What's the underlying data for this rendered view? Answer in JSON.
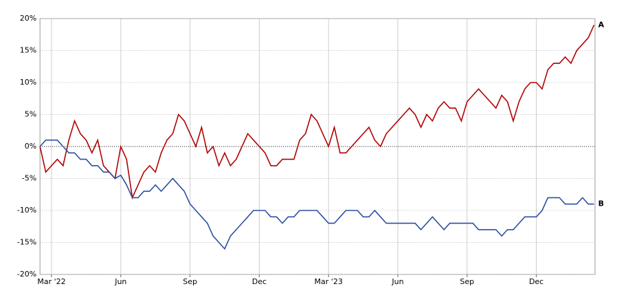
{
  "chart_data": {
    "type": "line",
    "categories": [
      null,
      null,
      "Mar '22",
      null,
      null,
      null,
      null,
      null,
      null,
      null,
      null,
      null,
      null,
      null,
      "Jun",
      null,
      null,
      null,
      null,
      null,
      null,
      null,
      null,
      null,
      null,
      null,
      "Sep",
      null,
      null,
      null,
      null,
      null,
      null,
      null,
      null,
      null,
      null,
      null,
      "Dec",
      null,
      null,
      null,
      null,
      null,
      null,
      null,
      null,
      null,
      null,
      null,
      "Mar '23",
      null,
      null,
      null,
      null,
      null,
      null,
      null,
      null,
      null,
      null,
      null,
      "Jun",
      null,
      null,
      null,
      null,
      null,
      null,
      null,
      null,
      null,
      null,
      null,
      "Sep",
      null,
      null,
      null,
      null,
      null,
      null,
      null,
      null,
      null,
      null,
      null,
      "Dec",
      null,
      null,
      null,
      null,
      null,
      null,
      null,
      null,
      null,
      null
    ],
    "series": [
      {
        "name": "A",
        "color": "#b00000",
        "values": [
          0,
          -4,
          -3,
          -2,
          -3,
          1,
          4,
          2,
          1,
          -1,
          1,
          -3,
          -4,
          -5,
          0,
          -2,
          -8,
          -6,
          -4,
          -3,
          -4,
          -1,
          1,
          2,
          5,
          4,
          2,
          0,
          3,
          -1,
          0,
          -3,
          -1,
          -3,
          -2,
          0,
          2,
          1,
          0,
          -1,
          -3,
          -3,
          -2,
          -2,
          -2,
          1,
          2,
          5,
          4,
          2,
          0,
          3,
          -1,
          -1,
          0,
          1,
          2,
          3,
          1,
          0,
          2,
          3,
          4,
          5,
          6,
          5,
          3,
          5,
          4,
          6,
          7,
          6,
          6,
          4,
          7,
          8,
          9,
          8,
          7,
          6,
          8,
          7,
          4,
          7,
          9,
          10,
          10,
          9,
          12,
          13,
          13,
          14,
          13,
          15,
          16,
          17,
          19
        ]
      },
      {
        "name": "B",
        "color": "#2a4fa0",
        "values": [
          0,
          1,
          1,
          1,
          0,
          -1,
          -1,
          -2,
          -2,
          -3,
          -3,
          -4,
          -4,
          -5,
          -4.5,
          -6,
          -8,
          -8,
          -7,
          -7,
          -6,
          -7,
          -6,
          -5,
          -6,
          -7,
          -9,
          -10,
          -11,
          -12,
          -14,
          -15,
          -16,
          -14,
          -13,
          -12,
          -11,
          -10,
          -10,
          -10,
          -11,
          -11,
          -12,
          -11,
          -11,
          -10,
          -10,
          -10,
          -10,
          -11,
          -12,
          -12,
          -11,
          -10,
          -10,
          -10,
          -11,
          -11,
          -10,
          -11,
          -12,
          -12,
          -12,
          -12,
          -12,
          -12,
          -13,
          -12,
          -11,
          -12,
          -13,
          -12,
          -12,
          -12,
          -12,
          -12,
          -13,
          -13,
          -13,
          -13,
          -14,
          -13,
          -13,
          -12,
          -11,
          -11,
          -11,
          -10,
          -8,
          -8,
          -8,
          -9,
          -9,
          -9,
          -8,
          -9,
          -9
        ]
      }
    ],
    "ylim": [
      -20,
      20
    ],
    "yticks": [
      {
        "value": -20,
        "label": "-20%"
      },
      {
        "value": -15,
        "label": "-15%"
      },
      {
        "value": -10,
        "label": "-10%"
      },
      {
        "value": -5,
        "label": "-5%"
      },
      {
        "value": 0,
        "label": "0%"
      },
      {
        "value": 5,
        "label": "5%"
      },
      {
        "value": 10,
        "label": "10%"
      },
      {
        "value": 15,
        "label": "15%"
      },
      {
        "value": 20,
        "label": "20%"
      }
    ],
    "grid": true
  }
}
